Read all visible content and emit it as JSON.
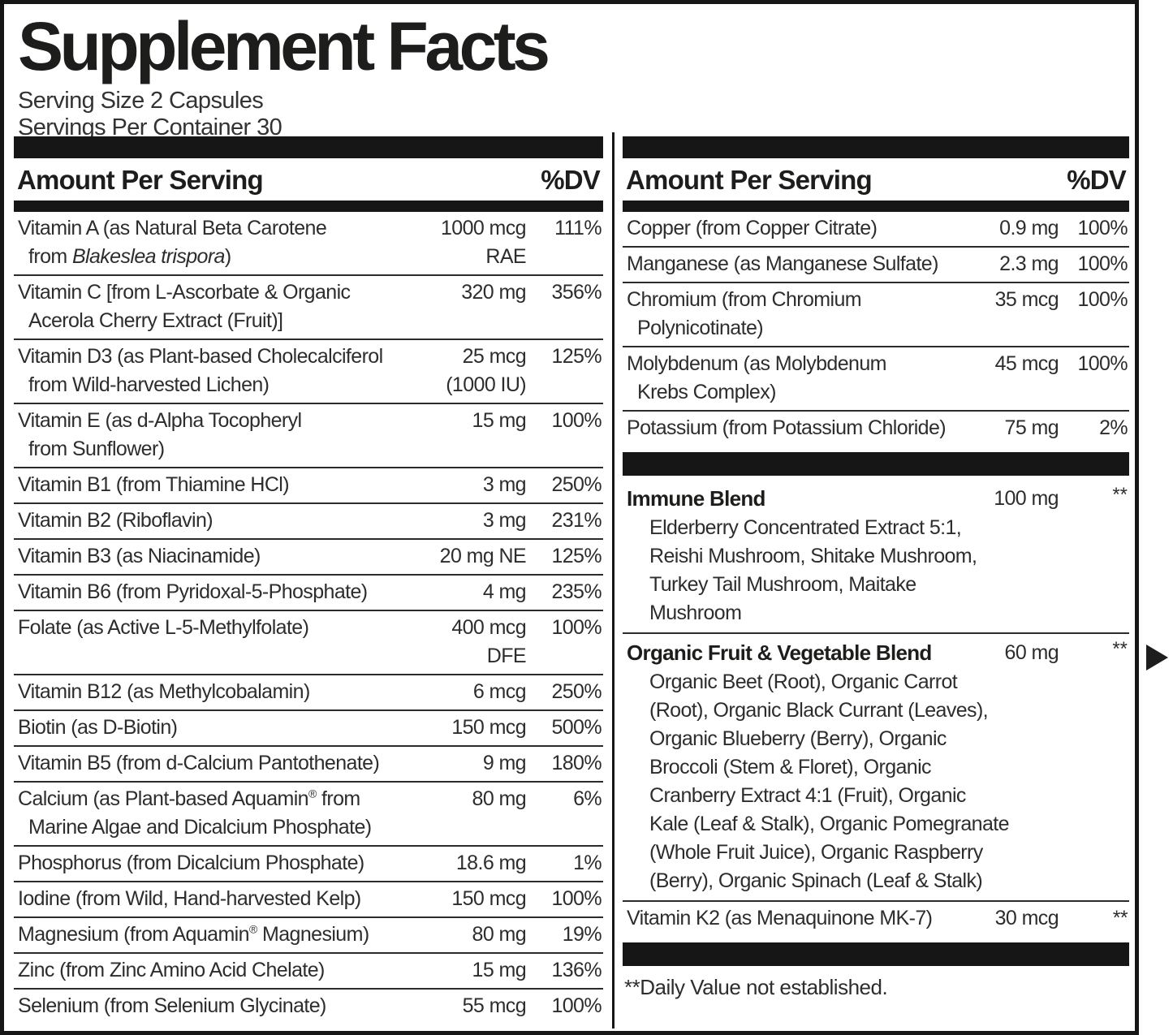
{
  "label": {
    "title": "Supplement Facts",
    "serving_size": "Serving Size 2 Capsules",
    "servings_per_container": "Servings Per Container 30",
    "column_header": {
      "amount_label": "Amount Per Serving",
      "dv_label": "%DV"
    },
    "left_column": {
      "rows": [
        {
          "name_lines": [
            "Vitamin A (as Natural Beta Carotene",
            "from _Blakeslea trispora_)"
          ],
          "amount_lines": [
            "1000 mcg",
            "RAE"
          ],
          "dv": "111%"
        },
        {
          "name_lines": [
            "Vitamin C [from L-Ascorbate & Organic",
            "Acerola Cherry Extract (Fruit)]"
          ],
          "amount_lines": [
            "320 mg"
          ],
          "dv": "356%"
        },
        {
          "name_lines": [
            "Vitamin D3 (as Plant-based Cholecalciferol",
            "from Wild-harvested Lichen)"
          ],
          "amount_lines": [
            "25 mcg",
            "(1000 IU)"
          ],
          "dv": "125%"
        },
        {
          "name_lines": [
            "Vitamin E (as d-Alpha Tocopheryl",
            "from Sunflower)"
          ],
          "amount_lines": [
            "15 mg"
          ],
          "dv": "100%"
        },
        {
          "name_lines": [
            "Vitamin B1 (from Thiamine HCl)"
          ],
          "amount_lines": [
            "3 mg"
          ],
          "dv": "250%"
        },
        {
          "name_lines": [
            "Vitamin B2 (Riboflavin)"
          ],
          "amount_lines": [
            "3 mg"
          ],
          "dv": "231%"
        },
        {
          "name_lines": [
            "Vitamin B3 (as Niacinamide)"
          ],
          "amount_lines": [
            "20 mg NE"
          ],
          "dv": "125%"
        },
        {
          "name_lines": [
            "Vitamin B6 (from Pyridoxal-5-Phosphate)"
          ],
          "amount_lines": [
            "4 mg"
          ],
          "dv": "235%"
        },
        {
          "name_lines": [
            "Folate (as Active L-5-Methylfolate)"
          ],
          "amount_lines": [
            "400 mcg",
            "DFE"
          ],
          "dv": "100%"
        },
        {
          "name_lines": [
            "Vitamin B12 (as Methylcobalamin)"
          ],
          "amount_lines": [
            "6 mcg"
          ],
          "dv": "250%"
        },
        {
          "name_lines": [
            "Biotin (as D-Biotin)"
          ],
          "amount_lines": [
            "150 mcg"
          ],
          "dv": "500%"
        },
        {
          "name_lines": [
            "Vitamin B5 (from d-Calcium Pantothenate)"
          ],
          "amount_lines": [
            "9 mg"
          ],
          "dv": "180%"
        },
        {
          "name_lines": [
            "Calcium (as Plant-based Aquamin® from",
            "Marine Algae and Dicalcium Phosphate)"
          ],
          "amount_lines": [
            "80 mg"
          ],
          "dv": "6%"
        },
        {
          "name_lines": [
            "Phosphorus (from Dicalcium Phosphate)"
          ],
          "amount_lines": [
            "18.6 mg"
          ],
          "dv": "1%"
        },
        {
          "name_lines": [
            "Iodine (from Wild, Hand-harvested Kelp)"
          ],
          "amount_lines": [
            "150 mcg"
          ],
          "dv": "100%"
        },
        {
          "name_lines": [
            "Magnesium (from Aquamin® Magnesium)"
          ],
          "amount_lines": [
            "80 mg"
          ],
          "dv": "19%"
        },
        {
          "name_lines": [
            "Zinc (from Zinc Amino Acid Chelate)"
          ],
          "amount_lines": [
            "15 mg"
          ],
          "dv": "136%"
        },
        {
          "name_lines": [
            "Selenium (from Selenium Glycinate)"
          ],
          "amount_lines": [
            "55 mcg"
          ],
          "dv": "100%"
        }
      ]
    },
    "right_column": {
      "rows": [
        {
          "name_lines": [
            "Copper (from Copper Citrate)"
          ],
          "amount_lines": [
            "0.9 mg"
          ],
          "dv": "100%"
        },
        {
          "name_lines": [
            "Manganese (as Manganese Sulfate)"
          ],
          "amount_lines": [
            "2.3 mg"
          ],
          "dv": "100%"
        },
        {
          "name_lines": [
            "Chromium (from Chromium",
            "Polynicotinate)"
          ],
          "amount_lines": [
            "35 mcg"
          ],
          "dv": "100%"
        },
        {
          "name_lines": [
            "Molybdenum (as Molybdenum",
            "Krebs Complex)"
          ],
          "amount_lines": [
            "45 mcg"
          ],
          "dv": "100%"
        },
        {
          "name_lines": [
            "Potassium (from Potassium Chloride)"
          ],
          "amount_lines": [
            "75 mg"
          ],
          "dv": "2%"
        }
      ],
      "blends": [
        {
          "name": "Immune Blend",
          "amount": "100 mg",
          "dv": "**",
          "ingredient_lines": [
            "Elderberry Concentrated Extract 5:1,",
            "Reishi Mushroom, Shitake Mushroom,",
            "Turkey Tail Mushroom, Maitake",
            "Mushroom"
          ]
        },
        {
          "name": "Organic Fruit & Vegetable Blend",
          "amount": "60 mg",
          "dv": "**",
          "ingredient_lines": [
            "Organic Beet (Root), Organic Carrot",
            "(Root), Organic Black Currant (Leaves),",
            "Organic Blueberry (Berry), Organic",
            "Broccoli (Stem & Floret), Organic",
            "Cranberry Extract 4:1 (Fruit), Organic",
            "Kale (Leaf & Stalk), Organic Pomegranate",
            "(Whole Fruit Juice), Organic Raspberry",
            "(Berry), Organic Spinach (Leaf & Stalk)"
          ]
        }
      ],
      "k2_row": {
        "name_lines": [
          "Vitamin K2 (as Menaquinone MK-7)"
        ],
        "amount_lines": [
          "30 mcg"
        ],
        "dv": "**"
      },
      "footnote": "**Daily Value not established."
    },
    "colors": {
      "ink": "#161616"
    }
  },
  "carousel": {
    "next_arrow": "right-pointing-triangle"
  }
}
